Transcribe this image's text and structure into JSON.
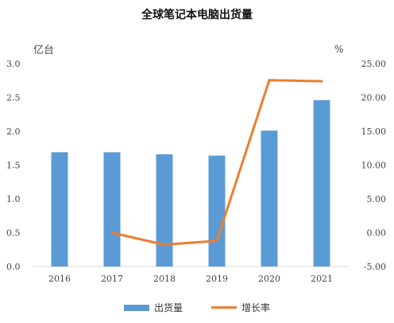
{
  "chart_data": {
    "type": "bar",
    "title": "全球笔记本电脑出货量",
    "ylabel_left": "亿台",
    "ylabel_right": "%",
    "categories": [
      "2016",
      "2017",
      "2018",
      "2019",
      "2020",
      "2021"
    ],
    "series": [
      {
        "name": "出货量",
        "type": "bar",
        "axis": "left",
        "color": "#5b9bd5",
        "values": [
          1.69,
          1.69,
          1.66,
          1.64,
          2.01,
          2.46
        ]
      },
      {
        "name": "增长率",
        "type": "line",
        "axis": "right",
        "color": "#ed7d31",
        "values": [
          null,
          0.0,
          -1.78,
          -1.2,
          22.56,
          22.39
        ]
      }
    ],
    "y_left": {
      "min": 0,
      "max": 3.0,
      "ticks": [
        "0.0",
        "0.5",
        "1.0",
        "1.5",
        "2.0",
        "2.5",
        "3.0"
      ]
    },
    "y_right": {
      "min": -5,
      "max": 25,
      "ticks": [
        "-5.00",
        "0.00",
        "5.00",
        "10.00",
        "15.00",
        "20.00",
        "25.00"
      ]
    },
    "grid": false,
    "legend": "bottom"
  }
}
